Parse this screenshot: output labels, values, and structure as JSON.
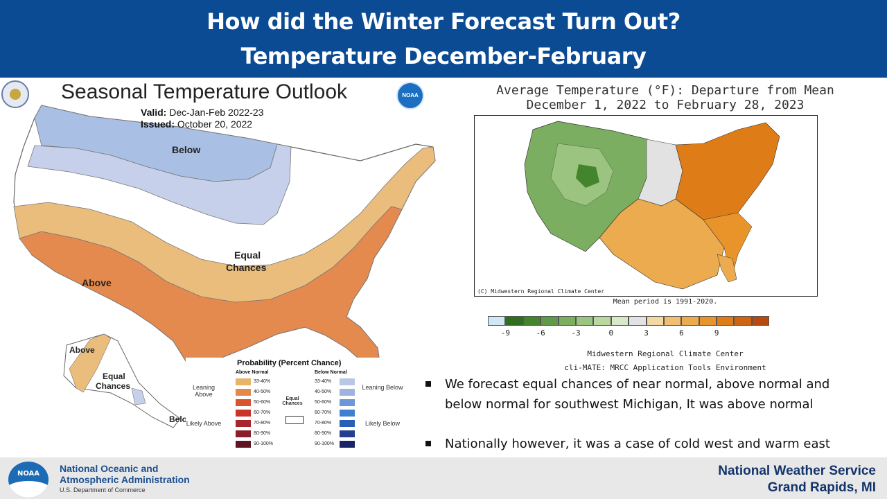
{
  "header": {
    "title_line1": "How did the Winter Forecast Turn Out?",
    "title_line2": "Temperature December-February"
  },
  "outlook": {
    "title": "Seasonal Temperature Outlook",
    "valid_label": "Valid:",
    "valid_value": "Dec-Jan-Feb 2022-23",
    "issued_label": "Issued:",
    "issued_value": "October 20, 2022",
    "labels": {
      "below": "Below",
      "equal_chances_1": "Equal",
      "equal_chances_2": "Chances",
      "above": "Above",
      "ak_above": "Above",
      "ak_equal_1": "Equal",
      "ak_equal_2": "Chances",
      "ak_below": "Below"
    },
    "legend": {
      "title": "Probability (Percent Chance)",
      "above_header": "Above Normal",
      "below_header": "Below Normal",
      "leaning_above": "Leaning Above",
      "likely_above": "Likely Above",
      "leaning_below": "Leaning Below",
      "likely_below": "Likely Below",
      "equal_chances": "Equal Chances",
      "ranges": [
        "33-40%",
        "40-50%",
        "50-60%",
        "60-70%",
        "70-80%",
        "80-90%",
        "90-100%"
      ],
      "above_colors": [
        "#e9b368",
        "#e3884a",
        "#d9532e",
        "#c9342a",
        "#a8252d",
        "#8a1e2a",
        "#5e1520"
      ],
      "below_colors": [
        "#b9c6e8",
        "#9fb3df",
        "#6f96d6",
        "#3f7fcf",
        "#2a5fb8",
        "#253f90",
        "#1b2566"
      ]
    },
    "region_colors": {
      "below": "#a9bfe3",
      "leaning_below": "#c7d0ea",
      "above_leaning": "#ebbd7c",
      "above": "#e48a4f"
    }
  },
  "departure": {
    "title_line1": "Average Temperature (°F): Departure from Mean",
    "title_line2": "December 1, 2022 to February 28, 2023",
    "credit": "(C) Midwestern Regional Climate Center",
    "mean_period": "Mean period is 1991-2020.",
    "colorbar_ticks": [
      "-9",
      "-6",
      "-3",
      "0",
      "3",
      "6",
      "9"
    ],
    "colorbar_colors": [
      "#cfe8f5",
      "#2f6e1e",
      "#44842d",
      "#5f9a48",
      "#7cae62",
      "#9ac47f",
      "#b8d89d",
      "#d9e8c9",
      "#e2e2e2",
      "#f4d8a3",
      "#f0bf72",
      "#ecab4e",
      "#e8942a",
      "#de7d17",
      "#cf6512",
      "#b84a10"
    ],
    "source_1": "Midwestern Regional Climate Center",
    "source_2": "cli-MATE: MRCC Application Tools Environment"
  },
  "bullets": [
    "We forecast equal chances of near normal, above normal and below normal for southwest Michigan, It was above normal",
    "Nationally however, it was a case of cold west and warm east"
  ],
  "footer": {
    "agency_line1": "National Oceanic and",
    "agency_line2": "Atmospheric Administration",
    "agency_line3": "U.S. Department of Commerce",
    "noaa_mark": "NOAA",
    "office_line1": "National Weather Service",
    "office_line2": "Grand Rapids, MI"
  }
}
